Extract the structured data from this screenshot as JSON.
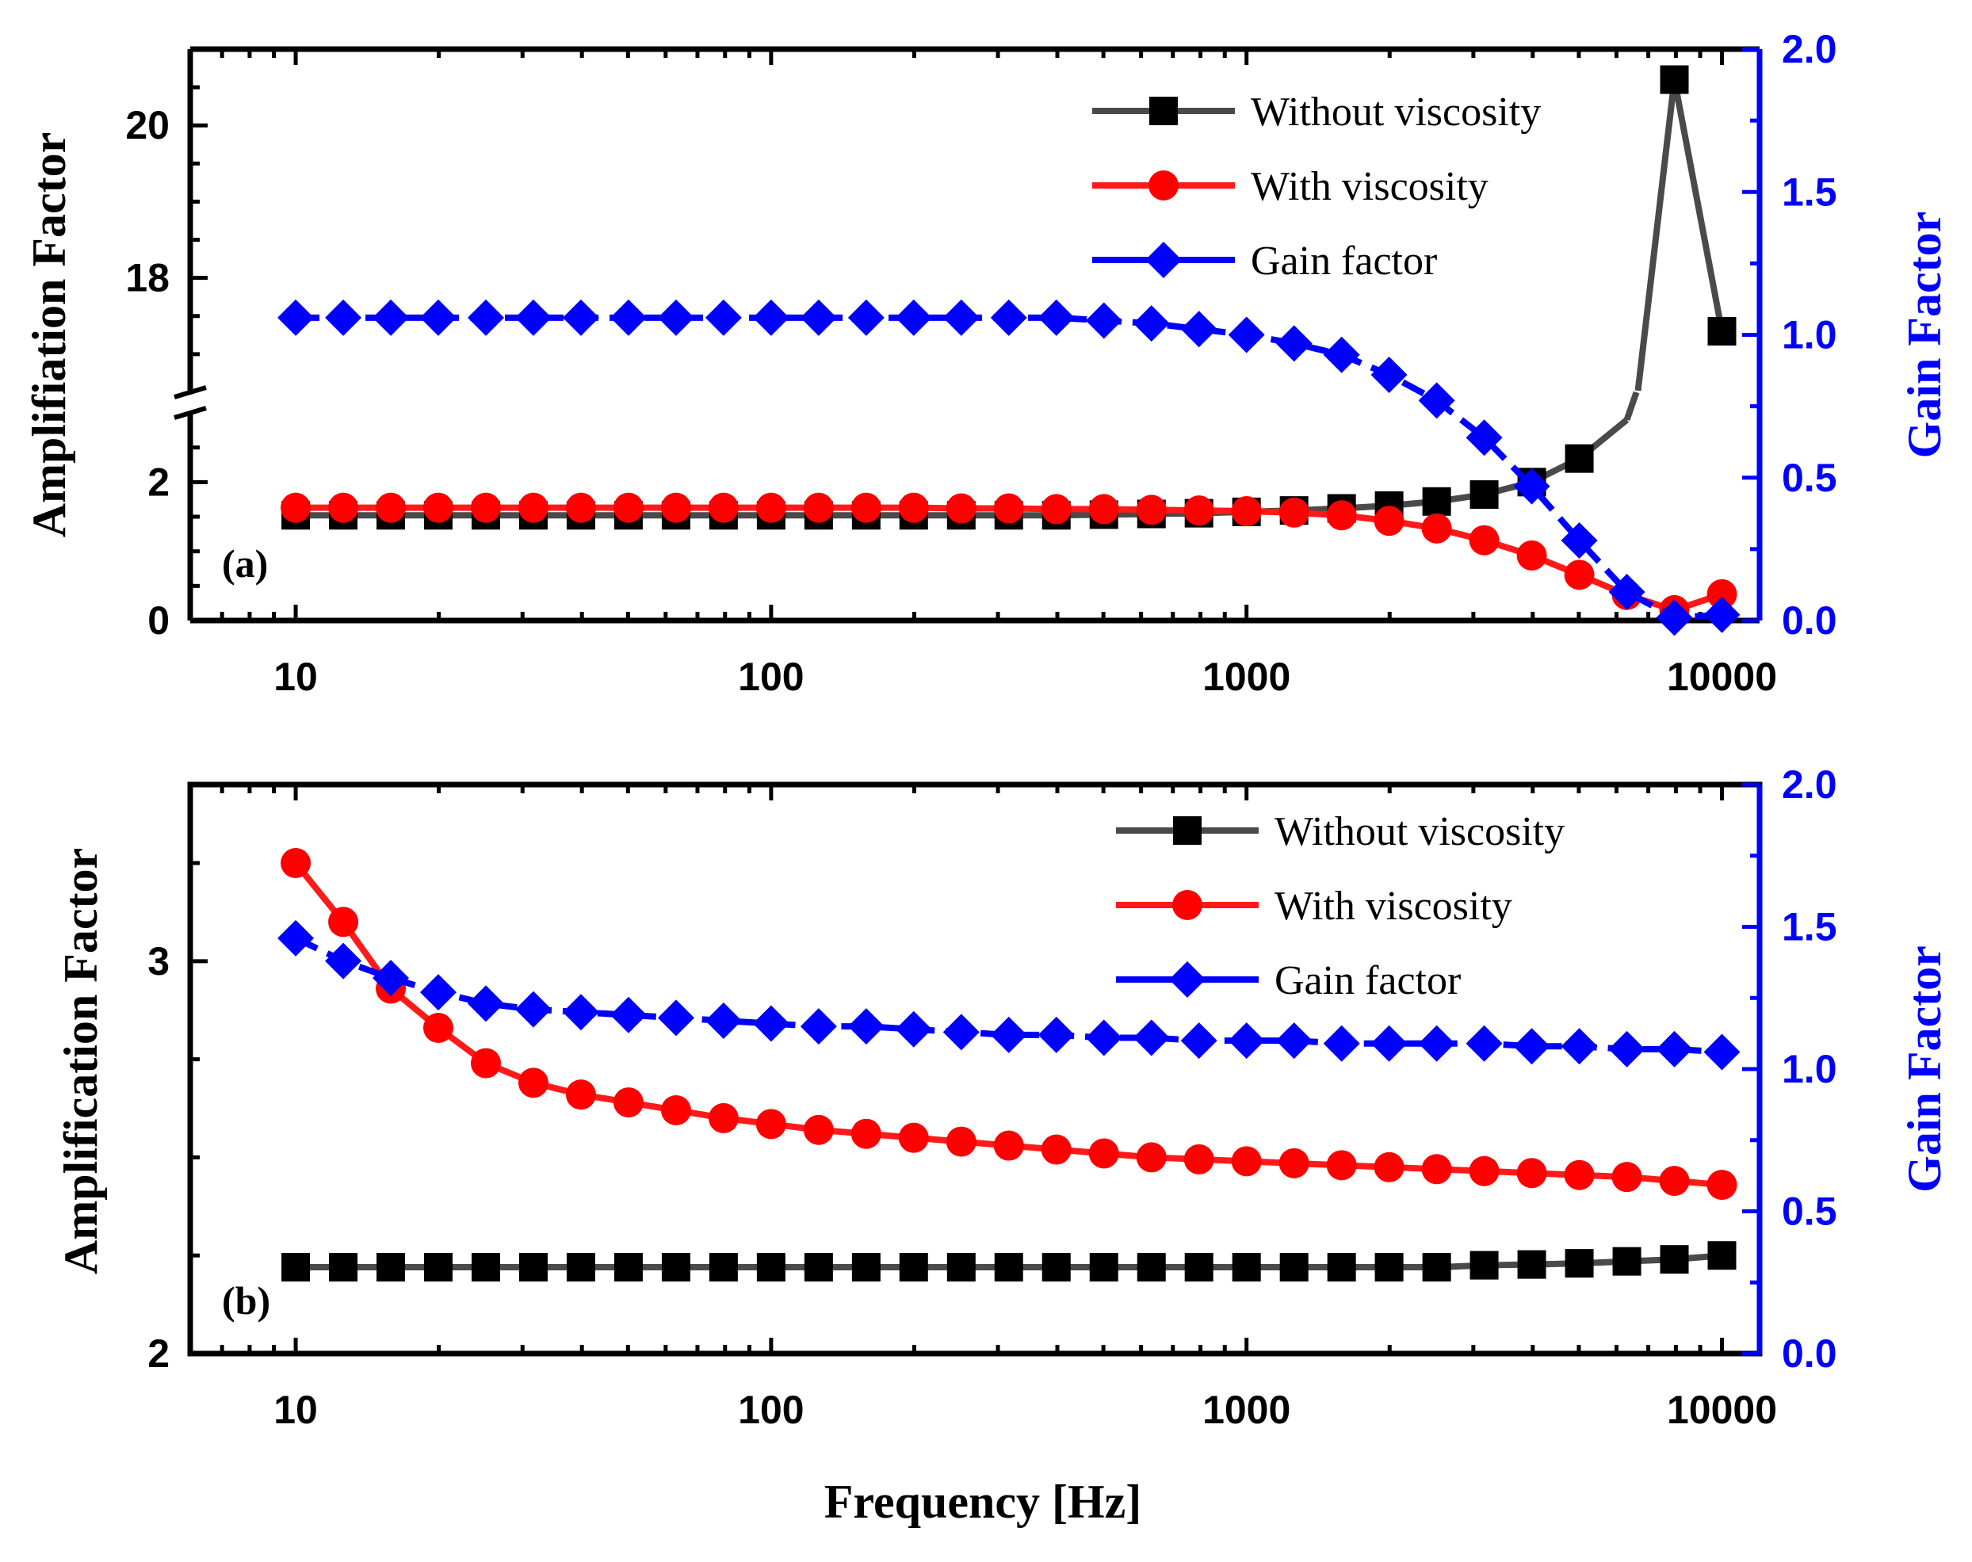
{
  "figure": {
    "xlabel": "Frequency [Hz]",
    "x_tick_labels": [
      "10",
      "100",
      "1000",
      "10000"
    ]
  },
  "chart_data": [
    {
      "type": "line",
      "panel_label": "(a)",
      "ylabel": "Amplifiation Factor",
      "y2label": "Gain Factor",
      "xscale": "log",
      "xlim": [
        6,
        12000
      ],
      "ylim_lower": [
        0,
        3.0
      ],
      "ylim_upper": [
        16.5,
        21.0
      ],
      "axis_break": [
        3.0,
        16.5
      ],
      "y2lim": [
        0,
        2.0
      ],
      "y_ticks": [
        "0",
        "2",
        "18",
        "20"
      ],
      "y2_ticks": [
        "0.0",
        "0.5",
        "1.0",
        "1.5",
        "2.0"
      ],
      "legend_position": "top-right",
      "x": [
        10,
        12.59,
        15.85,
        19.95,
        25.12,
        31.62,
        39.81,
        50.12,
        63.1,
        79.43,
        100,
        125.9,
        158.5,
        199.5,
        251.2,
        316.2,
        398.1,
        501.2,
        631,
        794.3,
        1000,
        1259,
        1585,
        1995,
        2512,
        3162,
        3981,
        5012,
        6310,
        7943,
        10000
      ],
      "series": [
        {
          "name": "Without viscosity",
          "axis": "left",
          "color": "#4a4a4a",
          "marker": "square",
          "values": [
            1.52,
            1.52,
            1.52,
            1.52,
            1.52,
            1.52,
            1.52,
            1.52,
            1.52,
            1.52,
            1.52,
            1.52,
            1.52,
            1.52,
            1.52,
            1.52,
            1.52,
            1.53,
            1.54,
            1.55,
            1.57,
            1.59,
            1.62,
            1.66,
            1.72,
            1.82,
            2.0,
            2.34,
            2.9,
            20.6,
            17.3
          ]
        },
        {
          "name": "With viscosity",
          "axis": "left",
          "color": "#ff1a1a",
          "marker": "circle",
          "values": [
            1.63,
            1.63,
            1.63,
            1.63,
            1.63,
            1.63,
            1.63,
            1.63,
            1.63,
            1.63,
            1.63,
            1.63,
            1.63,
            1.63,
            1.62,
            1.62,
            1.61,
            1.61,
            1.6,
            1.59,
            1.58,
            1.56,
            1.52,
            1.44,
            1.33,
            1.16,
            0.94,
            0.66,
            0.37,
            0.15,
            0.38
          ]
        },
        {
          "name": "Gain factor",
          "axis": "right",
          "color": "#0000ff",
          "marker": "diamond",
          "values": [
            1.06,
            1.06,
            1.06,
            1.06,
            1.06,
            1.06,
            1.06,
            1.06,
            1.06,
            1.06,
            1.06,
            1.06,
            1.06,
            1.06,
            1.06,
            1.06,
            1.06,
            1.05,
            1.04,
            1.02,
            1.0,
            0.97,
            0.93,
            0.86,
            0.77,
            0.64,
            0.47,
            0.28,
            0.1,
            0.01,
            0.02
          ]
        }
      ]
    },
    {
      "type": "line",
      "panel_label": "(b)",
      "ylabel": "Amplification Factor",
      "y2label": "Gain Factor",
      "xscale": "log",
      "xlim": [
        6,
        12000
      ],
      "ylim": [
        2.0,
        3.45
      ],
      "y2lim": [
        0,
        2.0
      ],
      "y_ticks": [
        "2",
        "3"
      ],
      "y2_ticks": [
        "0.0",
        "0.5",
        "1.0",
        "1.5",
        "2.0"
      ],
      "legend_position": "top-right",
      "x": [
        10,
        12.59,
        15.85,
        19.95,
        25.12,
        31.62,
        39.81,
        50.12,
        63.1,
        79.43,
        100,
        125.9,
        158.5,
        199.5,
        251.2,
        316.2,
        398.1,
        501.2,
        631,
        794.3,
        1000,
        1259,
        1585,
        1995,
        2512,
        3162,
        3981,
        5012,
        6310,
        7943,
        10000
      ],
      "series": [
        {
          "name": "Without viscosity",
          "axis": "left",
          "color": "#4a4a4a",
          "marker": "square",
          "values": [
            2.22,
            2.22,
            2.22,
            2.22,
            2.22,
            2.22,
            2.22,
            2.22,
            2.22,
            2.22,
            2.22,
            2.22,
            2.22,
            2.22,
            2.22,
            2.22,
            2.22,
            2.22,
            2.22,
            2.22,
            2.22,
            2.22,
            2.22,
            2.22,
            2.22,
            2.225,
            2.227,
            2.23,
            2.235,
            2.24,
            2.25
          ]
        },
        {
          "name": "With viscosity",
          "axis": "left",
          "color": "#ff1a1a",
          "marker": "circle",
          "values": [
            3.25,
            3.1,
            2.93,
            2.83,
            2.74,
            2.69,
            2.66,
            2.64,
            2.62,
            2.6,
            2.585,
            2.57,
            2.56,
            2.55,
            2.54,
            2.53,
            2.52,
            2.51,
            2.5,
            2.495,
            2.49,
            2.485,
            2.48,
            2.475,
            2.47,
            2.465,
            2.46,
            2.455,
            2.45,
            2.44,
            2.43
          ]
        },
        {
          "name": "Gain factor",
          "axis": "right",
          "color": "#0000ff",
          "marker": "diamond",
          "values": [
            1.46,
            1.38,
            1.32,
            1.27,
            1.23,
            1.21,
            1.2,
            1.19,
            1.18,
            1.17,
            1.16,
            1.15,
            1.15,
            1.14,
            1.13,
            1.12,
            1.12,
            1.11,
            1.11,
            1.1,
            1.1,
            1.1,
            1.09,
            1.09,
            1.09,
            1.09,
            1.08,
            1.08,
            1.07,
            1.07,
            1.06
          ]
        }
      ]
    }
  ]
}
